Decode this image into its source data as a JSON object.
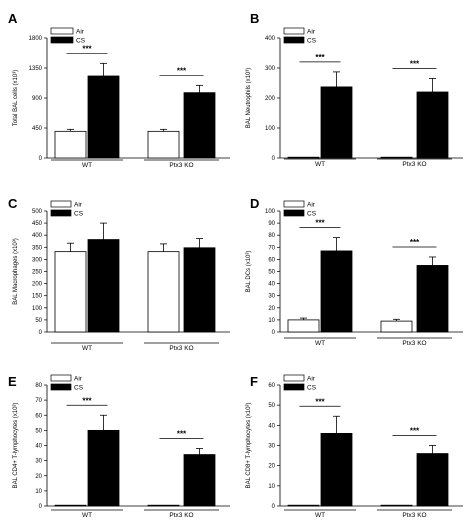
{
  "chart_data": [
    {
      "id": "A",
      "letter": "A",
      "type": "bar",
      "ylabel": "Total BAL cells (x10³)",
      "ylim": [
        0,
        1800
      ],
      "yticks": [
        0,
        450,
        900,
        1350,
        1800
      ],
      "groups": [
        "WT",
        "Ptx3 KO"
      ],
      "series": [
        {
          "name": "Air",
          "color": "#ffffff",
          "values": [
            400,
            400
          ],
          "errors": [
            30,
            30
          ]
        },
        {
          "name": "CS",
          "color": "#000000",
          "values": [
            1230,
            980
          ],
          "errors": [
            190,
            110
          ]
        }
      ],
      "significance": [
        "***",
        "***"
      ],
      "legend_position": "top-left"
    },
    {
      "id": "B",
      "letter": "B",
      "type": "bar",
      "ylabel": "BAL Neutrophils (x10³)",
      "ylim": [
        0,
        400
      ],
      "yticks": [
        0,
        100,
        200,
        300,
        400
      ],
      "groups": [
        "WT",
        "Ptx3 KO"
      ],
      "series": [
        {
          "name": "Air",
          "color": "#ffffff",
          "values": [
            0,
            0
          ],
          "errors": [
            0,
            0
          ]
        },
        {
          "name": "CS",
          "color": "#000000",
          "values": [
            237,
            220
          ],
          "errors": [
            50,
            45
          ]
        }
      ],
      "significance": [
        "***",
        "***"
      ],
      "legend_position": "top-left"
    },
    {
      "id": "C",
      "letter": "C",
      "type": "bar",
      "ylabel": "BAL Macrophages (x10³)",
      "ylim": [
        0,
        500
      ],
      "yticks": [
        0,
        50,
        100,
        150,
        200,
        250,
        300,
        350,
        400,
        450,
        500
      ],
      "groups": [
        "WT",
        "Ptx3 KO"
      ],
      "series": [
        {
          "name": "Air",
          "color": "#ffffff",
          "values": [
            332,
            332
          ],
          "errors": [
            35,
            32
          ]
        },
        {
          "name": "CS",
          "color": "#000000",
          "values": [
            382,
            348
          ],
          "errors": [
            68,
            38
          ]
        }
      ],
      "significance": [
        "",
        ""
      ],
      "legend_position": "top-left"
    },
    {
      "id": "D",
      "letter": "D",
      "type": "bar",
      "ylabel": "BAL DCs (x10³)",
      "ylim": [
        0,
        100
      ],
      "yticks": [
        0,
        10,
        20,
        30,
        40,
        50,
        60,
        70,
        80,
        90,
        100
      ],
      "groups": [
        "WT",
        "Ptx3 KO"
      ],
      "series": [
        {
          "name": "Air",
          "color": "#ffffff",
          "values": [
            10,
            9
          ],
          "errors": [
            1.5,
            1.5
          ]
        },
        {
          "name": "CS",
          "color": "#000000",
          "values": [
            67,
            55
          ],
          "errors": [
            11,
            7
          ]
        }
      ],
      "significance": [
        "***",
        "***"
      ],
      "legend_position": "top-left"
    },
    {
      "id": "E",
      "letter": "E",
      "type": "bar",
      "ylabel": "BAL CD4+ T-lymphocytes (x10³)",
      "ylim": [
        0,
        80
      ],
      "yticks": [
        0,
        10,
        20,
        30,
        40,
        50,
        60,
        70,
        80
      ],
      "groups": [
        "WT",
        "Ptx3 KO"
      ],
      "series": [
        {
          "name": "Air",
          "color": "#ffffff",
          "values": [
            0.5,
            0.5
          ],
          "errors": [
            0,
            0
          ]
        },
        {
          "name": "CS",
          "color": "#000000",
          "values": [
            50,
            34
          ],
          "errors": [
            10,
            4
          ]
        }
      ],
      "significance": [
        "***",
        "***"
      ],
      "legend_position": "top-left"
    },
    {
      "id": "F",
      "letter": "F",
      "type": "bar",
      "ylabel": "BAL CD8+ T-lymphocytes (x10³)",
      "ylim": [
        0,
        60
      ],
      "yticks": [
        0,
        10,
        20,
        30,
        40,
        50,
        60
      ],
      "groups": [
        "WT",
        "Ptx3 KO"
      ],
      "series": [
        {
          "name": "Air",
          "color": "#ffffff",
          "values": [
            0.4,
            0.4
          ],
          "errors": [
            0,
            0
          ]
        },
        {
          "name": "CS",
          "color": "#000000",
          "values": [
            36,
            26
          ],
          "errors": [
            8.5,
            4
          ]
        }
      ],
      "significance": [
        "***",
        "***"
      ],
      "legend_position": "top-left"
    }
  ]
}
